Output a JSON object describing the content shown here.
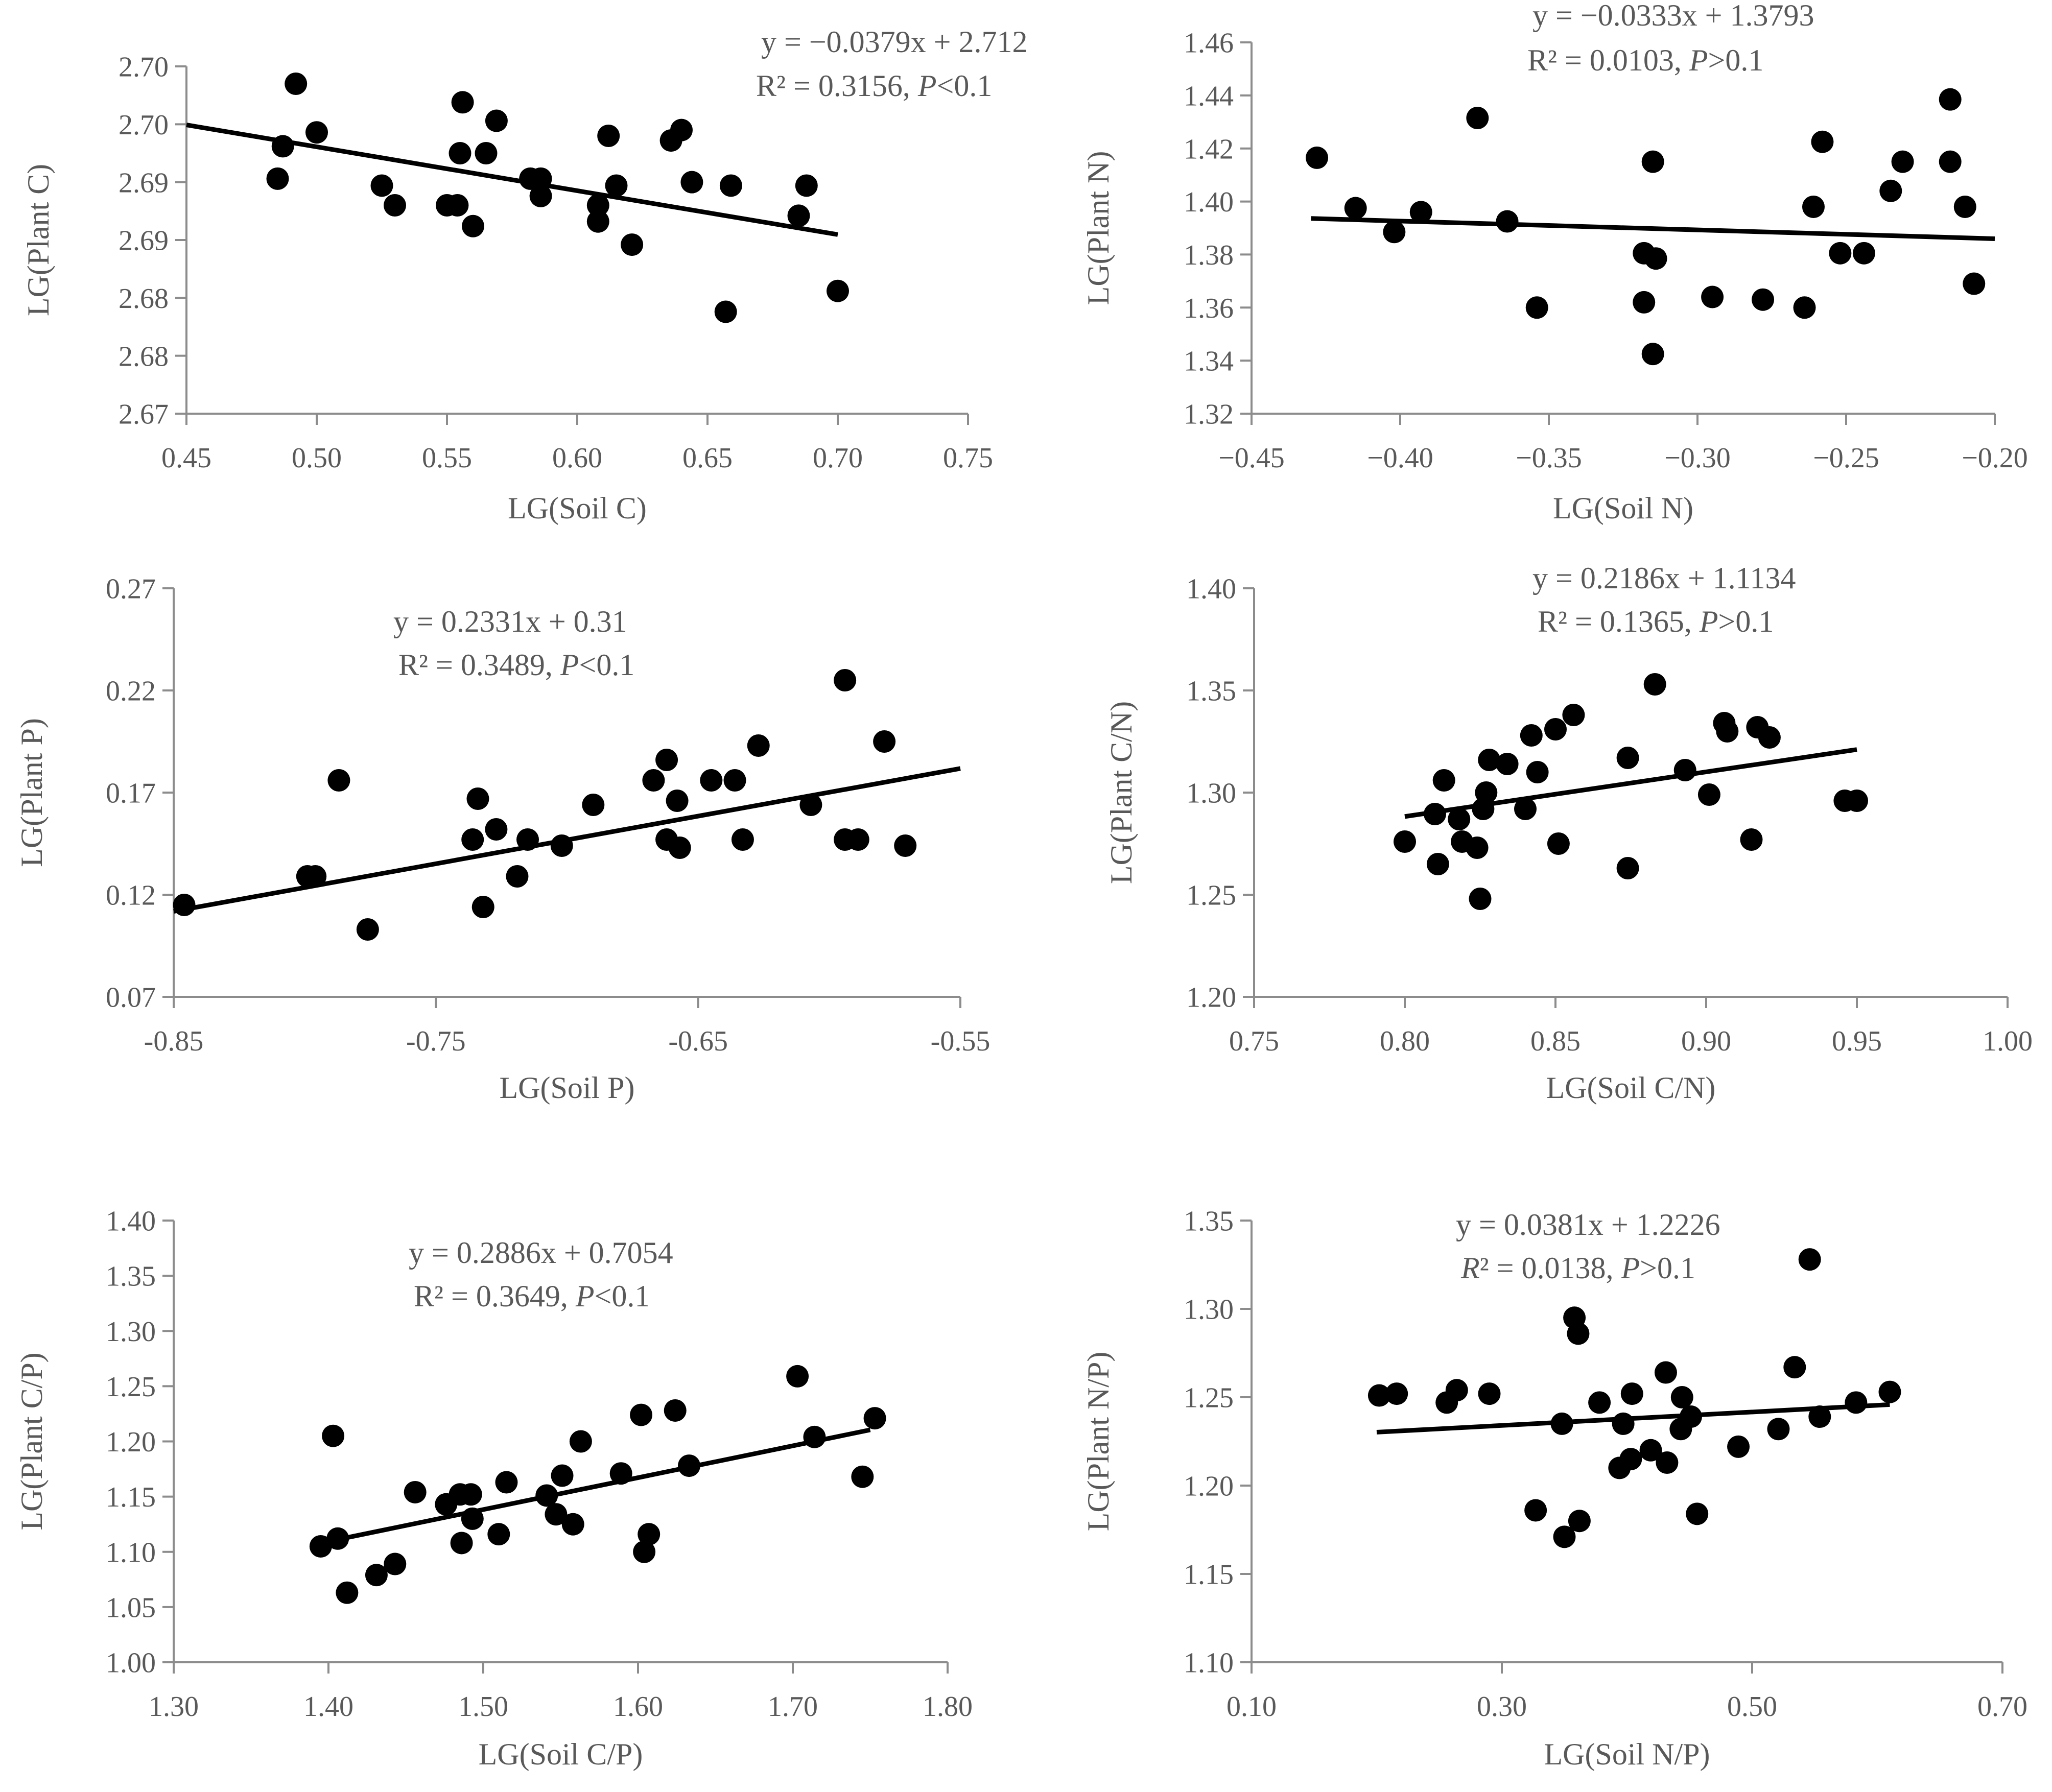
{
  "chart_data": [
    {
      "type": "scatter",
      "xlabel": "LG(Soil C)",
      "ylabel": "LG(Plant C)",
      "xlim": [
        0.45,
        0.75
      ],
      "ylim": [
        2.67,
        2.7
      ],
      "xticks": [
        "0.45",
        "0.50",
        "0.55",
        "0.60",
        "0.65",
        "0.70",
        "0.75"
      ],
      "yticks": [
        "2.67",
        "2.68",
        "2.68",
        "2.69",
        "2.69",
        "2.70",
        "2.70"
      ],
      "equation": "y = −0.0379x + 2.712",
      "r2_text": "R² = 0.3156, ",
      "p_symbol": "P",
      "p_text": "<0.1",
      "trend": {
        "slope": -0.0379,
        "intercept": 2.712,
        "x_range": [
          0.45,
          0.7
        ]
      },
      "points": [
        [
          0.485,
          2.6903
        ],
        [
          0.487,
          2.6931
        ],
        [
          0.492,
          2.6985
        ],
        [
          0.5,
          2.6943
        ],
        [
          0.525,
          2.6897
        ],
        [
          0.53,
          2.688
        ],
        [
          0.55,
          2.688
        ],
        [
          0.554,
          2.688
        ],
        [
          0.555,
          2.6925
        ],
        [
          0.556,
          2.6969
        ],
        [
          0.56,
          2.6862
        ],
        [
          0.565,
          2.6925
        ],
        [
          0.569,
          2.6953
        ],
        [
          0.582,
          2.6903
        ],
        [
          0.586,
          2.6903
        ],
        [
          0.586,
          2.6888
        ],
        [
          0.608,
          2.6866
        ],
        [
          0.608,
          2.688
        ],
        [
          0.612,
          2.694
        ],
        [
          0.615,
          2.6897
        ],
        [
          0.621,
          2.6846
        ],
        [
          0.636,
          2.6936
        ],
        [
          0.64,
          2.6945
        ],
        [
          0.644,
          2.69
        ],
        [
          0.659,
          2.6897
        ],
        [
          0.657,
          2.6788
        ],
        [
          0.685,
          2.6871
        ],
        [
          0.688,
          2.6897
        ],
        [
          0.7,
          2.6806
        ]
      ]
    },
    {
      "type": "scatter",
      "xlabel": "LG(Soil N)",
      "ylabel": "LG(Plant N)",
      "xlim": [
        -0.45,
        -0.2
      ],
      "ylim": [
        1.32,
        1.46
      ],
      "xticks": [
        "−0.45",
        "−0.40",
        "−0.35",
        "−0.30",
        "−0.25",
        "−0.20"
      ],
      "yticks": [
        "1.32",
        "1.34",
        "1.36",
        "1.38",
        "1.40",
        "1.42",
        "1.44",
        "1.46"
      ],
      "equation": "y = −0.0333x + 1.3793",
      "r2_text": "R² = 0.0103, ",
      "p_symbol": "P",
      "p_text": ">0.1",
      "trend": {
        "slope": -0.0333,
        "intercept": 1.3793,
        "x_range": [
          -0.43,
          -0.2
        ]
      },
      "points": [
        [
          -0.428,
          1.4165
        ],
        [
          -0.415,
          1.3975
        ],
        [
          -0.402,
          1.3885
        ],
        [
          -0.393,
          1.396
        ],
        [
          -0.374,
          1.4315
        ],
        [
          -0.364,
          1.3925
        ],
        [
          -0.354,
          1.36
        ],
        [
          -0.318,
          1.3805
        ],
        [
          -0.318,
          1.362
        ],
        [
          -0.315,
          1.415
        ],
        [
          -0.315,
          1.3425
        ],
        [
          -0.314,
          1.3785
        ],
        [
          -0.295,
          1.364
        ],
        [
          -0.278,
          1.363
        ],
        [
          -0.264,
          1.36
        ],
        [
          -0.261,
          1.398
        ],
        [
          -0.258,
          1.4225
        ],
        [
          -0.252,
          1.3805
        ],
        [
          -0.244,
          1.3805
        ],
        [
          -0.235,
          1.404
        ],
        [
          -0.231,
          1.415
        ],
        [
          -0.215,
          1.4385
        ],
        [
          -0.215,
          1.415
        ],
        [
          -0.21,
          1.398
        ],
        [
          -0.207,
          1.369
        ]
      ]
    },
    {
      "type": "scatter",
      "xlabel": "LG(Soil P)",
      "ylabel": "LG(Plant P)",
      "xlim": [
        -0.85,
        -0.55
      ],
      "ylim": [
        0.07,
        0.27
      ],
      "xticks": [
        "-0.85",
        "-0.75",
        "-0.65",
        "-0.55"
      ],
      "yticks": [
        "0.07",
        "0.12",
        "0.17",
        "0.22",
        "0.27"
      ],
      "equation": "y = 0.2331x + 0.31",
      "r2_text": "R² = 0.3489, ",
      "p_symbol": "P",
      "p_text": "<0.1",
      "trend": {
        "slope": 0.2331,
        "intercept": 0.31,
        "x_range": [
          -0.85,
          -0.55
        ]
      },
      "points": [
        [
          -0.846,
          0.115
        ],
        [
          -0.799,
          0.129
        ],
        [
          -0.796,
          0.129
        ],
        [
          -0.787,
          0.176
        ],
        [
          -0.776,
          0.103
        ],
        [
          -0.736,
          0.147
        ],
        [
          -0.734,
          0.167
        ],
        [
          -0.732,
          0.114
        ],
        [
          -0.727,
          0.152
        ],
        [
          -0.719,
          0.129
        ],
        [
          -0.715,
          0.147
        ],
        [
          -0.702,
          0.144
        ],
        [
          -0.69,
          0.164
        ],
        [
          -0.667,
          0.176
        ],
        [
          -0.662,
          0.186
        ],
        [
          -0.662,
          0.147
        ],
        [
          -0.658,
          0.166
        ],
        [
          -0.657,
          0.143
        ],
        [
          -0.645,
          0.176
        ],
        [
          -0.636,
          0.176
        ],
        [
          -0.633,
          0.147
        ],
        [
          -0.627,
          0.193
        ],
        [
          -0.607,
          0.164
        ],
        [
          -0.594,
          0.225
        ],
        [
          -0.594,
          0.147
        ],
        [
          -0.589,
          0.147
        ],
        [
          -0.579,
          0.195
        ],
        [
          -0.571,
          0.144
        ]
      ]
    },
    {
      "type": "scatter",
      "xlabel": "LG(Soil C/N)",
      "ylabel": "LG(Plant C/N)",
      "xlim": [
        0.75,
        1.0
      ],
      "ylim": [
        1.2,
        1.4
      ],
      "xticks": [
        "0.75",
        "0.80",
        "0.85",
        "0.90",
        "0.95",
        "1.00"
      ],
      "yticks": [
        "1.20",
        "1.25",
        "1.30",
        "1.35",
        "1.40"
      ],
      "equation": "y = 0.2186x + 1.1134",
      "r2_text": "R² = 0.1365, ",
      "p_symbol": "P",
      "p_text": ">0.1",
      "trend": {
        "slope": 0.2186,
        "intercept": 1.1134,
        "x_range": [
          0.8,
          0.95
        ]
      },
      "points": [
        [
          0.8,
          1.276
        ],
        [
          0.81,
          1.2895
        ],
        [
          0.811,
          1.265
        ],
        [
          0.813,
          1.306
        ],
        [
          0.818,
          1.287
        ],
        [
          0.819,
          1.276
        ],
        [
          0.824,
          1.273
        ],
        [
          0.825,
          1.248
        ],
        [
          0.826,
          1.292
        ],
        [
          0.827,
          1.3
        ],
        [
          0.828,
          1.316
        ],
        [
          0.834,
          1.314
        ],
        [
          0.84,
          1.292
        ],
        [
          0.842,
          1.328
        ],
        [
          0.844,
          1.31
        ],
        [
          0.85,
          1.331
        ],
        [
          0.851,
          1.275
        ],
        [
          0.856,
          1.338
        ],
        [
          0.874,
          1.263
        ],
        [
          0.874,
          1.317
        ],
        [
          0.883,
          1.353
        ],
        [
          0.893,
          1.311
        ],
        [
          0.901,
          1.299
        ],
        [
          0.906,
          1.334
        ],
        [
          0.907,
          1.33
        ],
        [
          0.915,
          1.277
        ],
        [
          0.917,
          1.332
        ],
        [
          0.921,
          1.327
        ],
        [
          0.946,
          1.296
        ],
        [
          0.95,
          1.296
        ]
      ]
    },
    {
      "type": "scatter",
      "xlabel": "LG(Soil C/P)",
      "ylabel": "LG(Plant C/P)",
      "xlim": [
        1.3,
        1.8
      ],
      "ylim": [
        1.0,
        1.4
      ],
      "xticks": [
        "1.30",
        "1.40",
        "1.50",
        "1.60",
        "1.70",
        "1.80"
      ],
      "yticks": [
        "1.00",
        "1.05",
        "1.10",
        "1.15",
        "1.20",
        "1.25",
        "1.30",
        "1.35",
        "1.40"
      ],
      "equation": "y = 0.2886x + 0.7054",
      "r2_text": "R² = 0.3649, ",
      "p_symbol": "P",
      "p_text": "<0.1",
      "trend": {
        "slope": 0.2886,
        "intercept": 0.7054,
        "x_range": [
          1.4,
          1.75
        ]
      },
      "points": [
        [
          1.395,
          1.105
        ],
        [
          1.403,
          1.205
        ],
        [
          1.406,
          1.112
        ],
        [
          1.412,
          1.063
        ],
        [
          1.431,
          1.079
        ],
        [
          1.443,
          1.089
        ],
        [
          1.456,
          1.154
        ],
        [
          1.476,
          1.143
        ],
        [
          1.485,
          1.152
        ],
        [
          1.486,
          1.108
        ],
        [
          1.492,
          1.152
        ],
        [
          1.493,
          1.13
        ],
        [
          1.51,
          1.116
        ],
        [
          1.515,
          1.163
        ],
        [
          1.541,
          1.151
        ],
        [
          1.547,
          1.134
        ],
        [
          1.551,
          1.169
        ],
        [
          1.558,
          1.125
        ],
        [
          1.563,
          1.2
        ],
        [
          1.589,
          1.171
        ],
        [
          1.602,
          1.224
        ],
        [
          1.604,
          1.1
        ],
        [
          1.607,
          1.116
        ],
        [
          1.624,
          1.228
        ],
        [
          1.633,
          1.178
        ],
        [
          1.703,
          1.259
        ],
        [
          1.714,
          1.204
        ],
        [
          1.745,
          1.168
        ],
        [
          1.753,
          1.221
        ]
      ]
    },
    {
      "type": "scatter",
      "xlabel": "LG(Soil N/P)",
      "ylabel": "LG(Plant N/P)",
      "xlim": [
        0.1,
        0.7
      ],
      "ylim": [
        1.1,
        1.35
      ],
      "xticks": [
        "0.10",
        "0.30",
        "0.50",
        "0.70"
      ],
      "yticks": [
        "1.10",
        "1.15",
        "1.20",
        "1.25",
        "1.30",
        "1.35"
      ],
      "equation": "y = 0.0381x + 1.2226",
      "r2_symbol": "R",
      "r2_text": "² = 0.0138, ",
      "p_symbol": "P",
      "p_text": ">0.1",
      "trend": {
        "slope": 0.0381,
        "intercept": 1.2226,
        "x_range": [
          0.2,
          0.61
        ]
      },
      "points": [
        [
          0.202,
          1.251
        ],
        [
          0.216,
          1.252
        ],
        [
          0.256,
          1.247
        ],
        [
          0.264,
          1.254
        ],
        [
          0.29,
          1.252
        ],
        [
          0.327,
          1.186
        ],
        [
          0.348,
          1.235
        ],
        [
          0.35,
          1.171
        ],
        [
          0.358,
          1.295
        ],
        [
          0.361,
          1.286
        ],
        [
          0.362,
          1.18
        ],
        [
          0.378,
          1.247
        ],
        [
          0.394,
          1.21
        ],
        [
          0.397,
          1.235
        ],
        [
          0.403,
          1.215
        ],
        [
          0.404,
          1.252
        ],
        [
          0.419,
          1.22
        ],
        [
          0.431,
          1.264
        ],
        [
          0.432,
          1.213
        ],
        [
          0.443,
          1.232
        ],
        [
          0.444,
          1.25
        ],
        [
          0.451,
          1.239
        ],
        [
          0.456,
          1.184
        ],
        [
          0.489,
          1.222
        ],
        [
          0.521,
          1.232
        ],
        [
          0.534,
          1.267
        ],
        [
          0.546,
          1.328
        ],
        [
          0.554,
          1.239
        ],
        [
          0.583,
          1.247
        ],
        [
          0.61,
          1.253
        ]
      ]
    }
  ]
}
